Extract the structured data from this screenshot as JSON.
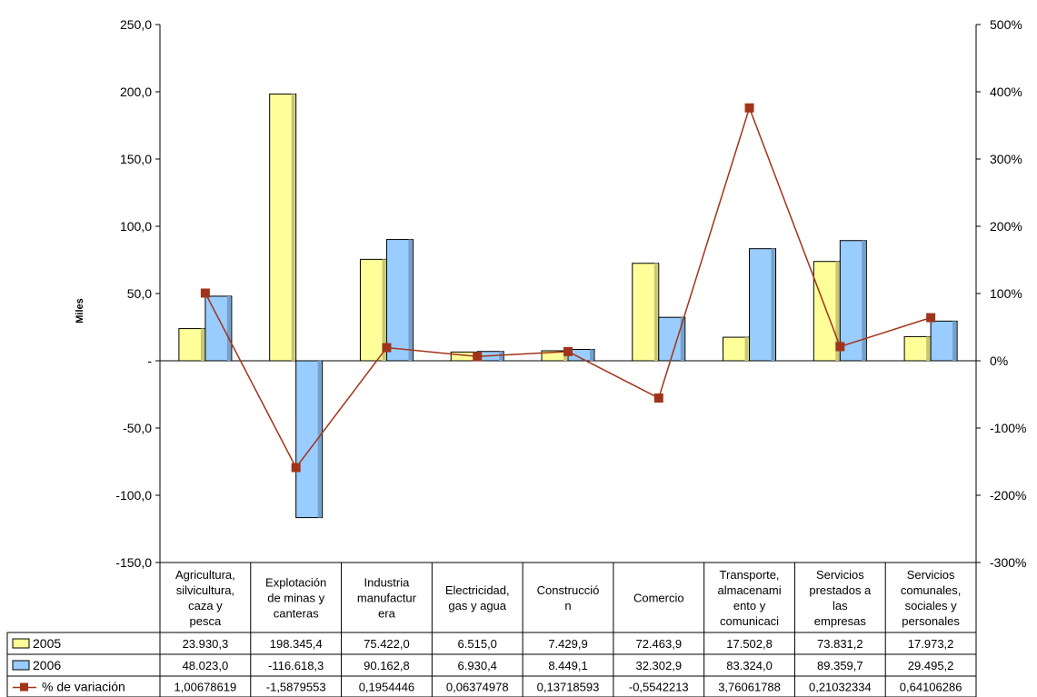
{
  "chart_data": {
    "type": "bar",
    "title": "",
    "xlabel": "",
    "ylabel": "Miles",
    "ylim": [
      -150,
      250
    ],
    "y_ticks": [
      "250,0",
      "200,0",
      "150,0",
      "100,0",
      "50,0",
      "-",
      "-50,0",
      "-100,0",
      "-150,0"
    ],
    "y2lim": [
      -300,
      500
    ],
    "y2_ticks": [
      "500%",
      "400%",
      "300%",
      "200%",
      "100%",
      "0%",
      "-100%",
      "-200%",
      "-300%"
    ],
    "grid": false,
    "legend": "data-table",
    "categories": [
      [
        "Agricultura,",
        "silvicultura,",
        "caza y",
        "pesca"
      ],
      [
        "Explotación",
        "de minas y",
        "canteras"
      ],
      [
        "Industria",
        "manufactur",
        "era"
      ],
      [
        "Electricidad,",
        "gas y agua"
      ],
      [
        "Construcció",
        "n"
      ],
      [
        "Comercio"
      ],
      [
        "Transporte,",
        "almacenami",
        "ento y",
        "comunicaci"
      ],
      [
        "Servicios",
        "prestados a",
        "las",
        "empresas"
      ],
      [
        "Servicios",
        "comunales,",
        "sociales y",
        "personales"
      ]
    ],
    "series": [
      {
        "name": "2005",
        "kind": "bar",
        "axis": "left",
        "color": "#ffff99",
        "values": [
          23.9303,
          198.3454,
          75.422,
          6.515,
          7.4299,
          72.4639,
          17.5028,
          73.8312,
          17.9732
        ],
        "labels": [
          "23.930,3",
          "198.345,4",
          "75.422,0",
          "6.515,0",
          "7.429,9",
          "72.463,9",
          "17.502,8",
          "73.831,2",
          "17.973,2"
        ]
      },
      {
        "name": "2006",
        "kind": "bar",
        "axis": "left",
        "color": "#99ccff",
        "values": [
          48.023,
          -116.6183,
          90.1628,
          6.9304,
          8.4491,
          32.3029,
          83.324,
          89.3597,
          29.4952
        ],
        "labels": [
          "48.023,0",
          "-116.618,3",
          "90.162,8",
          "6.930,4",
          "8.449,1",
          "32.302,9",
          "83.324,0",
          "89.359,7",
          "29.495,2"
        ]
      },
      {
        "name": "% de variación",
        "kind": "line",
        "axis": "right",
        "color": "#a0341a",
        "values": [
          1.00678619,
          -1.5879553,
          0.1954446,
          0.06374978,
          0.13718593,
          -0.5542213,
          3.76061788,
          0.21032334,
          0.64106286
        ],
        "labels": [
          "1,00678619",
          "-1,5879553",
          "0,1954446",
          "0,06374978",
          "0,13718593",
          "-0,5542213",
          "3,76061788",
          "0,21032334",
          "0,64106286"
        ]
      }
    ]
  }
}
